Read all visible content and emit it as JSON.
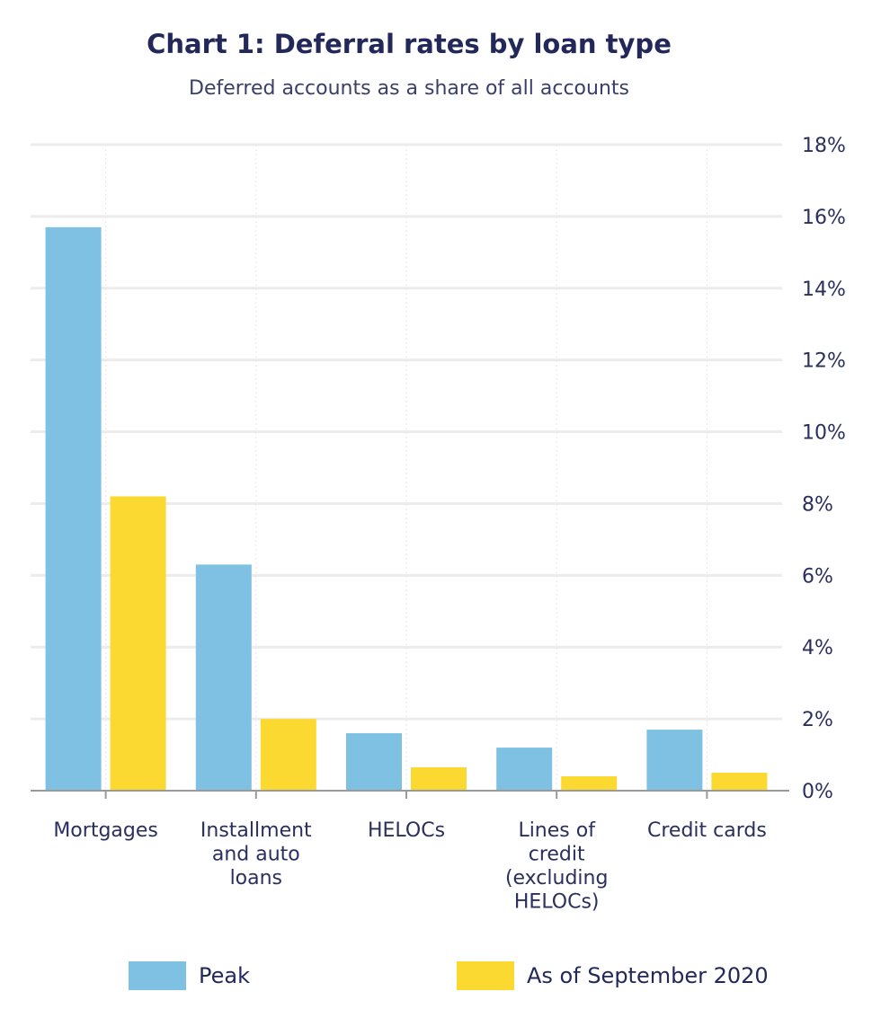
{
  "chart_data": {
    "type": "bar",
    "title": "Chart 1: Deferral rates by loan type",
    "subtitle": "Deferred accounts as a share of all accounts",
    "categories": [
      [
        "Mortgages"
      ],
      [
        "Installment",
        "and auto",
        "loans"
      ],
      [
        "HELOCs"
      ],
      [
        "Lines of",
        "credit",
        "(excluding",
        "HELOCs)"
      ],
      [
        "Credit cards"
      ]
    ],
    "series": [
      {
        "name": "Peak",
        "color": "#7fc1e2",
        "values": [
          15.7,
          6.3,
          1.6,
          1.2,
          1.7
        ]
      },
      {
        "name": "As of September 2020",
        "color": "#fbd930",
        "values": [
          8.2,
          2.0,
          0.65,
          0.4,
          0.5
        ]
      }
    ],
    "ylim": [
      0,
      18
    ],
    "yticks": [
      "0%",
      "2%",
      "4%",
      "6%",
      "8%",
      "10%",
      "12%",
      "14%",
      "16%",
      "18%"
    ],
    "ytick_values": [
      0,
      2,
      4,
      6,
      8,
      10,
      12,
      14,
      16,
      18
    ],
    "grid": true,
    "y_axis_side": "right",
    "legend_position": "bottom"
  }
}
